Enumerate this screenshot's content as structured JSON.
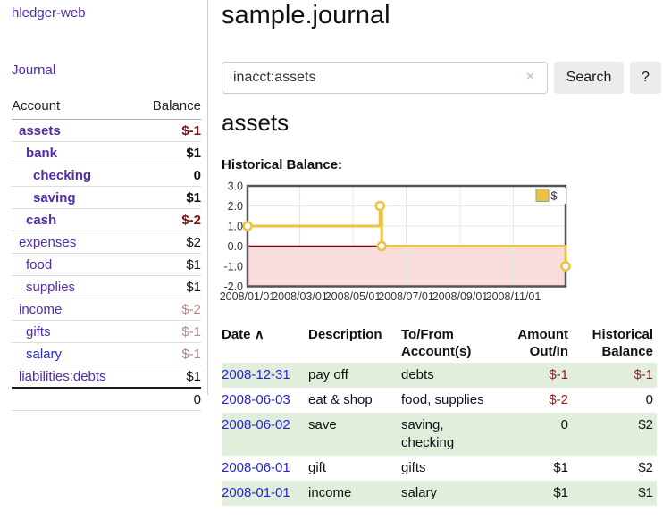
{
  "sidebar": {
    "app_title": "hledger-web",
    "journal_link": "Journal",
    "accounts_table": {
      "headers": {
        "account": "Account",
        "balance": "Balance"
      },
      "rows": [
        {
          "name": "assets",
          "depth": 1,
          "bold": true,
          "balance": "$-1",
          "bal_class": "bal-neg-strong",
          "link": "purple"
        },
        {
          "name": "bank",
          "depth": 2,
          "bold": true,
          "balance": "$1",
          "bal_class": "bal-pos",
          "link": "purple"
        },
        {
          "name": "checking",
          "depth": 3,
          "bold": true,
          "balance": "0",
          "bal_class": "bal-pos",
          "link": "purple"
        },
        {
          "name": "saving",
          "depth": 3,
          "bold": true,
          "balance": "$1",
          "bal_class": "bal-pos",
          "link": "purple"
        },
        {
          "name": "cash",
          "depth": 2,
          "bold": true,
          "balance": "$-2",
          "bal_class": "bal-neg-strong",
          "link": "purple"
        },
        {
          "name": "expenses",
          "depth": 1,
          "bold": false,
          "balance": "$2",
          "bal_class": "bal-pos",
          "link": "purple"
        },
        {
          "name": "food",
          "depth": 2,
          "bold": false,
          "balance": "$1",
          "bal_class": "bal-pos",
          "link": "purple"
        },
        {
          "name": "supplies",
          "depth": 2,
          "bold": false,
          "balance": "$1",
          "bal_class": "bal-pos",
          "link": "purple"
        },
        {
          "name": "income",
          "depth": 1,
          "bold": false,
          "balance": "$-2",
          "bal_class": "bal-neg-dim",
          "link": "purple"
        },
        {
          "name": "gifts",
          "depth": 2,
          "bold": false,
          "balance": "$-1",
          "bal_class": "bal-neg-dim",
          "link": "purple"
        },
        {
          "name": "salary",
          "depth": 2,
          "bold": false,
          "balance": "$-1",
          "bal_class": "bal-neg-dim",
          "link": "blue"
        },
        {
          "name": "liabilities:debts",
          "depth": 1,
          "bold": false,
          "balance": "$1",
          "bal_class": "bal-pos",
          "link": "purple"
        }
      ],
      "total": "0"
    }
  },
  "main": {
    "title": "sample.journal",
    "search": {
      "value": "inacct:assets",
      "clear_icon": "×",
      "button": "Search",
      "help_button": "?"
    },
    "account_heading": "assets",
    "chart_label": "Historical Balance:"
  },
  "chart_data": {
    "type": "line",
    "step": true,
    "title": "Historical Balance",
    "series": [
      {
        "name": "$",
        "color": "#EDC240",
        "points": [
          {
            "date": "2008/01/01",
            "value": 1
          },
          {
            "date": "2008/06/01",
            "value": 2
          },
          {
            "date": "2008/06/03",
            "value": 0
          },
          {
            "date": "2008/12/31",
            "value": -1
          }
        ]
      }
    ],
    "xmin": "2008/01/01",
    "xmax": "2008/12/31",
    "ylim": [
      -2,
      3
    ],
    "yticks": [
      3,
      2,
      1,
      0,
      -1,
      -2
    ],
    "ytick_labels": [
      "3.0",
      "2.0",
      "1.0",
      "0.0",
      "-1.0",
      "-2.0"
    ],
    "xtick_labels": [
      "2008/01/01",
      "2008/03/01",
      "2008/05/01",
      "2008/07/01",
      "2008/09/01",
      "2008/11/01"
    ],
    "legend": "$",
    "legend_position": "top-right",
    "grid": true,
    "negative_region_color": "#f9dbdb",
    "zero_line_color": "#8b0000",
    "border_color": "#545454",
    "grid_color": "#e7e7e7"
  },
  "register": {
    "headers": [
      "Date",
      "Description",
      "To/From Account(s)",
      "Amount Out/In",
      "Historical Balance"
    ],
    "sort_icon": "∧",
    "rows": [
      {
        "date": "2008-12-31",
        "description": "pay off",
        "accounts": "debts",
        "amount": "$-1",
        "amount_neg": true,
        "balance": "$-1",
        "balance_neg": true,
        "stripe": true
      },
      {
        "date": "2008-06-03",
        "description": "eat & shop",
        "accounts": "food, supplies",
        "amount": "$-2",
        "amount_neg": true,
        "balance": "0",
        "balance_neg": false,
        "stripe": false
      },
      {
        "date": "2008-06-02",
        "description": "save",
        "accounts": "saving, checking",
        "amount": "0",
        "amount_neg": false,
        "balance": "$2",
        "balance_neg": false,
        "stripe": true
      },
      {
        "date": "2008-06-01",
        "description": "gift",
        "accounts": "gifts",
        "amount": "$1",
        "amount_neg": false,
        "balance": "$2",
        "balance_neg": false,
        "stripe": false
      },
      {
        "date": "2008-01-01",
        "description": "income",
        "accounts": "salary",
        "amount": "$1",
        "amount_neg": false,
        "balance": "$1",
        "balance_neg": false,
        "stripe": true
      }
    ]
  },
  "colors": {
    "link_purple": "#512da8",
    "link_blue": "#2230cf",
    "negative_strong": "#7f1212",
    "negative": "#8f2222",
    "negative_dim": "#bd8282",
    "stripe_green": "#e1eedb",
    "button_bg": "#ececec"
  }
}
